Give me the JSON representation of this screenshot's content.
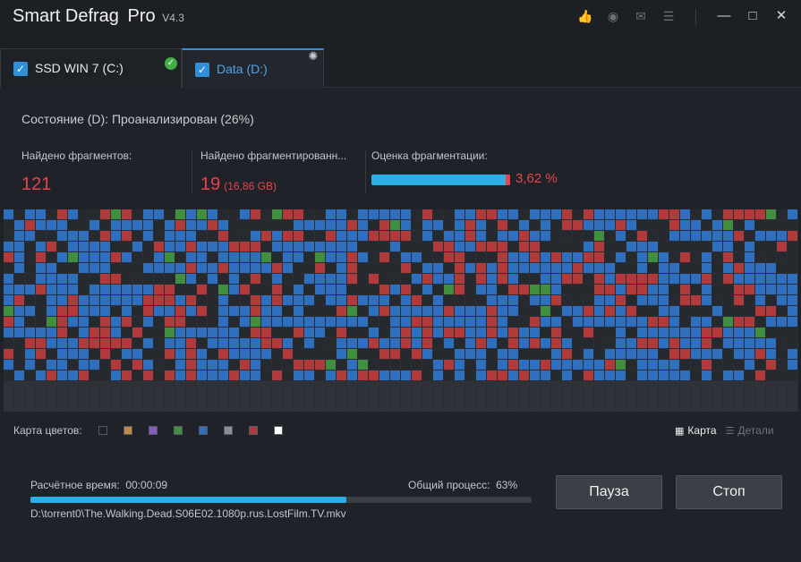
{
  "title": {
    "name": "Smart Defrag",
    "edition": "Pro",
    "version": "V4.3"
  },
  "toolbar_icons": [
    "like-icon",
    "skin-icon",
    "message-icon",
    "menu-icon"
  ],
  "window_buttons": [
    "minimize-icon",
    "maximize-icon",
    "close-icon"
  ],
  "tabs": [
    {
      "label": "SSD WIN 7 (C:)",
      "checked": true,
      "badge": "check-icon",
      "active": false
    },
    {
      "label": "Data (D:)",
      "checked": true,
      "badge": "gear-icon",
      "active": true
    }
  ],
  "status": "Состояние (D): Проанализирован (26%)",
  "stats": {
    "fragments_label": "Найдено фрагментов:",
    "fragments_value": "121",
    "files_label": "Найдено фрагментированн...",
    "files_value": "19",
    "files_size": "(16,86 GB)",
    "rating_label": "Оценка фрагментации:",
    "rating_value": "3,62 %"
  },
  "colors": {
    "blue": "#2f6fbf",
    "red": "#b23a3a",
    "green": "#3f8f3f",
    "dark": "#26292e",
    "empty": "#2f3238",
    "accent": "#2bb0e6",
    "alert": "#e8434b"
  },
  "legend": {
    "label": "Карта цветов:",
    "swatches": [
      "#1e2126",
      "#c08a4a",
      "#8a5cc0",
      "#3f8f3f",
      "#2f6fbf",
      "#8a8d92",
      "#b23a3a",
      "#ffffff"
    ]
  },
  "view": {
    "map_label": "Карта",
    "details_label": "Детали",
    "selected": "map"
  },
  "progress": {
    "estimate_label": "Расчётное время:",
    "estimate_value": "00:00:09",
    "total_label": "Общий процесс:",
    "total_value": "63%",
    "fraction": 0.63,
    "file": "D:\\torrent0\\The.Walking.Dead.S06E02.1080p.rus.LostFilm.TV.mkv"
  },
  "buttons": {
    "pause": "Пауза",
    "stop": "Стоп"
  }
}
